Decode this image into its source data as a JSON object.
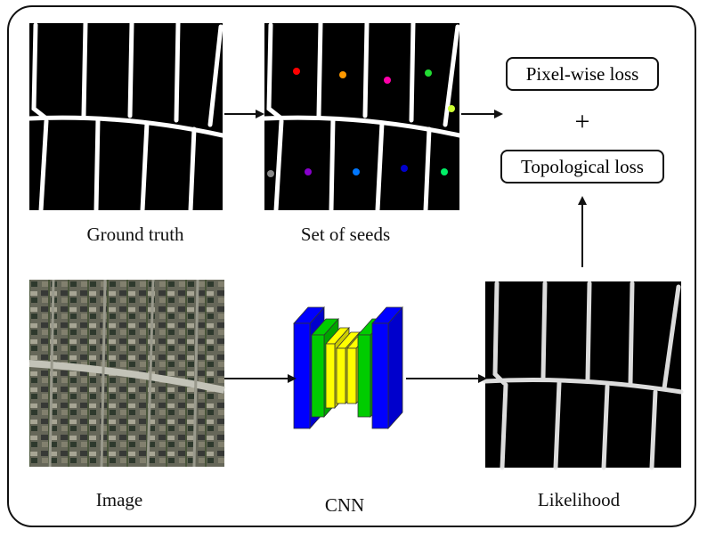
{
  "labels": {
    "ground_truth": "Ground truth",
    "set_of_seeds": "Set of seeds",
    "image": "Image",
    "cnn": "CNN",
    "likelihood": "Likelihood"
  },
  "losses": {
    "pixel_wise": "Pixel-wise loss",
    "plus": "+",
    "topological": "Topological loss"
  },
  "seed_colors": [
    "#ff0000",
    "#ff9900",
    "#ff00aa",
    "#22dd33",
    "#ccff33",
    "#888888",
    "#8800cc",
    "#0077ff",
    "#0000cc",
    "#00ee66"
  ],
  "cnn_layer_colors": {
    "outer": "#0000ff",
    "middle": "#00cc00",
    "inner": "#ffff00"
  }
}
